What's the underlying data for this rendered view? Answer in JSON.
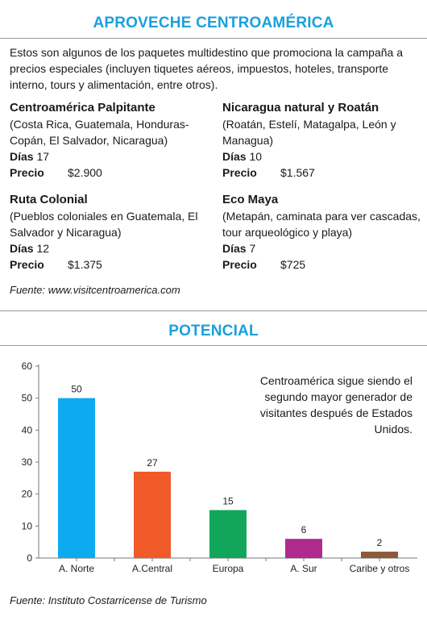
{
  "header": {
    "title": "APROVECHE CENTROAMÉRICA",
    "intro": "Estos son algunos de los paquetes multidestino que promociona la campaña a precios especiales (incluyen tiquetes aéreos, impuestos, hoteles, transporte interno, tours y alimentación, entre otros)."
  },
  "labels": {
    "days": "Días",
    "price": "Precio"
  },
  "packages": [
    {
      "name": "Centroamérica Palpitante",
      "places": "(Costa Rica, Guatemala, Honduras-Copán, El Salvador, Nicaragua)",
      "days": "17",
      "price": "$2.900"
    },
    {
      "name": "Nicaragua natural y Roatán",
      "places": "(Roatán, Estelí, Matagalpa, León y Managua)",
      "days": "10",
      "price": "$1.567"
    },
    {
      "name": "Ruta Colonial",
      "places": "(Pueblos coloniales en Guatemala, El Salvador y Nicaragua)",
      "days": "12",
      "price": "$1.375"
    },
    {
      "name": "Eco Maya",
      "places": "(Metapán, caminata para ver cascadas, tour arqueológico y playa)",
      "days": "7",
      "price": "$725"
    }
  ],
  "source1": "Fuente: www.visitcentroamerica.com",
  "section2": {
    "title": "POTENCIAL",
    "note": "Centroamérica sigue siendo el segundo mayor generador de visitantes después de Estados Unidos.",
    "source": "Fuente: Instituto Costarricense de Turismo"
  },
  "colors": {
    "accent": "#1aa0dc"
  },
  "chart_data": {
    "type": "bar",
    "categories": [
      "A. Norte",
      "A.Central",
      "Europa",
      "A. Sur",
      "Caribe y otros"
    ],
    "values": [
      50,
      27,
      15,
      6,
      2
    ],
    "colors": [
      "#0eaaf0",
      "#f05a28",
      "#12a65b",
      "#b02a8e",
      "#8a5a3a"
    ],
    "ylim": [
      0,
      60
    ],
    "yticks": [
      0,
      10,
      20,
      30,
      40,
      50,
      60
    ],
    "data_labels": true,
    "grid": false,
    "title": "",
    "xlabel": "",
    "ylabel": ""
  }
}
